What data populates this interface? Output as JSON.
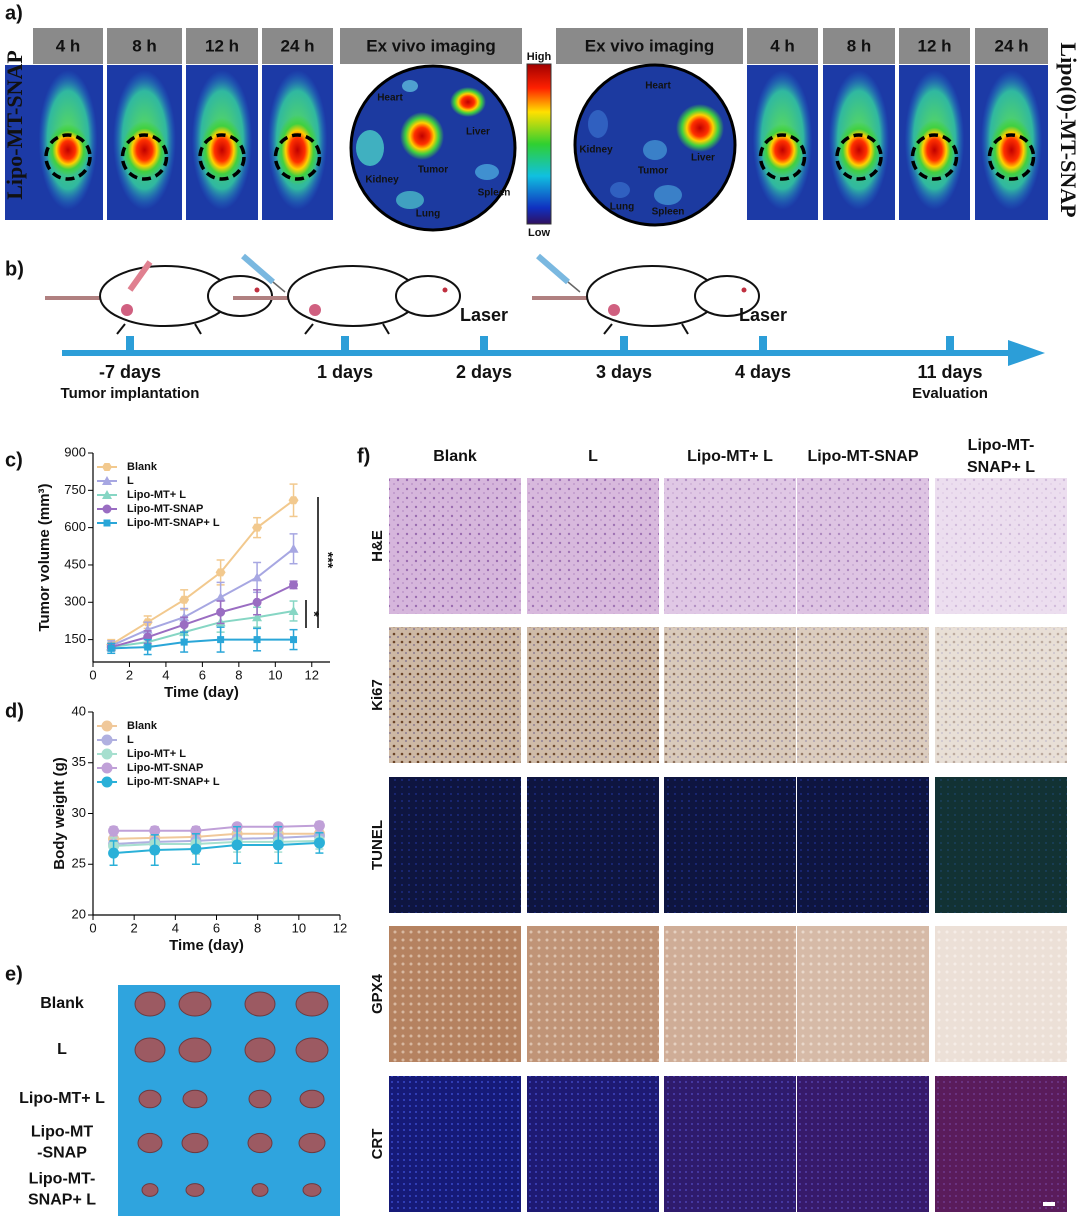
{
  "panel_a": {
    "label": "a)",
    "left_title": "Lipo-MT-SNAP",
    "right_title": "Lipo(0)-MT-SNAP",
    "left_times": [
      "4 h",
      "8 h",
      "12 h",
      "24 h"
    ],
    "left_exvivo": "Ex vivo imaging",
    "left_organs": [
      "Heart",
      "Liver",
      "Tumor",
      "Kidney",
      "Spleen",
      "Lung"
    ],
    "scale_high": "High",
    "scale_low": "Low",
    "right_exvivo": "Ex vivo imaging",
    "right_organs": [
      "Heart",
      "Kidney",
      "Liver",
      "Tumor",
      "Lung",
      "Spleen"
    ],
    "right_times": [
      "4 h",
      "8 h",
      "12 h",
      "24 h"
    ]
  },
  "panel_b": {
    "label": "b)",
    "timeline": [
      {
        "day": "-7 days",
        "note": "Tumor implantation"
      },
      {
        "day": "1 days"
      },
      {
        "day": "2 days",
        "event": "Laser"
      },
      {
        "day": "3 days"
      },
      {
        "day": "4 days",
        "event": "Laser"
      },
      {
        "day": "11 days",
        "note": "Evaluation"
      }
    ]
  },
  "chart_data": [
    {
      "type": "line",
      "panel_label": "c)",
      "x_label": "Time (day)",
      "y_label": "Tumor volume (mm³)",
      "x": [
        1,
        3,
        5,
        7,
        9,
        11
      ],
      "xlim": [
        0,
        13
      ],
      "xticks": [
        0,
        2,
        4,
        6,
        8,
        10,
        12
      ],
      "ylim": [
        60,
        900
      ],
      "yticks": [
        150,
        300,
        450,
        600,
        750,
        900
      ],
      "legend": "upper left",
      "annotations": [
        "***",
        "*"
      ],
      "series": [
        {
          "name": "Blank",
          "color": "#f2c98e",
          "values": [
            130,
            220,
            310,
            420,
            600,
            710
          ],
          "errors": [
            20,
            25,
            40,
            50,
            40,
            65
          ]
        },
        {
          "name": "L",
          "color": "#a7a7e2",
          "values": [
            125,
            190,
            240,
            320,
            400,
            515
          ],
          "errors": [
            20,
            30,
            35,
            60,
            60,
            60
          ]
        },
        {
          "name": "Lipo-MT+ L",
          "color": "#86d6c4",
          "values": [
            120,
            140,
            180,
            220,
            240,
            265
          ],
          "errors": [
            15,
            25,
            30,
            40,
            40,
            40
          ]
        },
        {
          "name": "Lipo-MT-SNAP",
          "color": "#9a6dc2",
          "values": [
            120,
            160,
            210,
            260,
            300,
            370
          ],
          "errors": [
            15,
            25,
            30,
            45,
            50,
            15
          ]
        },
        {
          "name": "Lipo-MT-SNAP+ L",
          "color": "#2aa6d8",
          "values": [
            115,
            120,
            140,
            150,
            150,
            150
          ],
          "errors": [
            20,
            30,
            40,
            50,
            45,
            40
          ]
        }
      ]
    },
    {
      "type": "line",
      "panel_label": "d)",
      "x_label": "Time (day)",
      "y_label": "Body weight (g)",
      "x": [
        1,
        3,
        5,
        7,
        9,
        11
      ],
      "xlim": [
        0,
        12
      ],
      "xticks": [
        0,
        2,
        4,
        6,
        8,
        10,
        12
      ],
      "ylim": [
        20,
        40
      ],
      "yticks": [
        20,
        25,
        30,
        35,
        40
      ],
      "legend": "upper left",
      "series": [
        {
          "name": "Blank",
          "color": "#f0c89a",
          "values": [
            27.5,
            27.6,
            27.7,
            28.0,
            28.0,
            28.0
          ],
          "errors": [
            0.6,
            0.6,
            0.6,
            0.6,
            0.6,
            0.6
          ]
        },
        {
          "name": "L",
          "color": "#b0b0e0",
          "values": [
            27.0,
            27.2,
            27.3,
            27.5,
            27.6,
            27.8
          ],
          "errors": [
            0.8,
            0.8,
            0.8,
            0.8,
            0.8,
            0.8
          ]
        },
        {
          "name": "Lipo-MT+ L",
          "color": "#a6dfcf",
          "values": [
            26.8,
            27.0,
            27.0,
            27.2,
            27.2,
            27.3
          ],
          "errors": [
            0.8,
            1.0,
            1.0,
            1.0,
            1.0,
            0.8
          ]
        },
        {
          "name": "Lipo-MT-SNAP",
          "color": "#c0a0d8",
          "values": [
            28.3,
            28.3,
            28.3,
            28.7,
            28.7,
            28.8
          ],
          "errors": [
            0.4,
            0.4,
            0.4,
            0.3,
            0.3,
            0.4
          ]
        },
        {
          "name": "Lipo-MT-SNAP+ L",
          "color": "#2ab0d8",
          "values": [
            26.1,
            26.4,
            26.5,
            26.9,
            26.9,
            27.1
          ],
          "errors": [
            1.2,
            1.5,
            1.5,
            1.8,
            1.8,
            1.0
          ]
        }
      ]
    }
  ],
  "panel_e": {
    "label": "e)",
    "rows": [
      [
        "Blank"
      ],
      [
        "L"
      ],
      [
        "Lipo-MT+ L"
      ],
      [
        "Lipo-MT",
        "-SNAP"
      ],
      [
        "Lipo-MT-",
        "SNAP+ L"
      ]
    ]
  },
  "panel_f": {
    "label": "f)",
    "columns": [
      [
        "Blank"
      ],
      [
        "L"
      ],
      [
        "Lipo-MT+ L"
      ],
      [
        "Lipo-MT-SNAP"
      ],
      [
        "Lipo-MT-",
        "SNAP+ L"
      ]
    ],
    "rows": [
      "H&E",
      "Ki67",
      "TUNEL",
      "GPX4",
      "CRT"
    ]
  }
}
